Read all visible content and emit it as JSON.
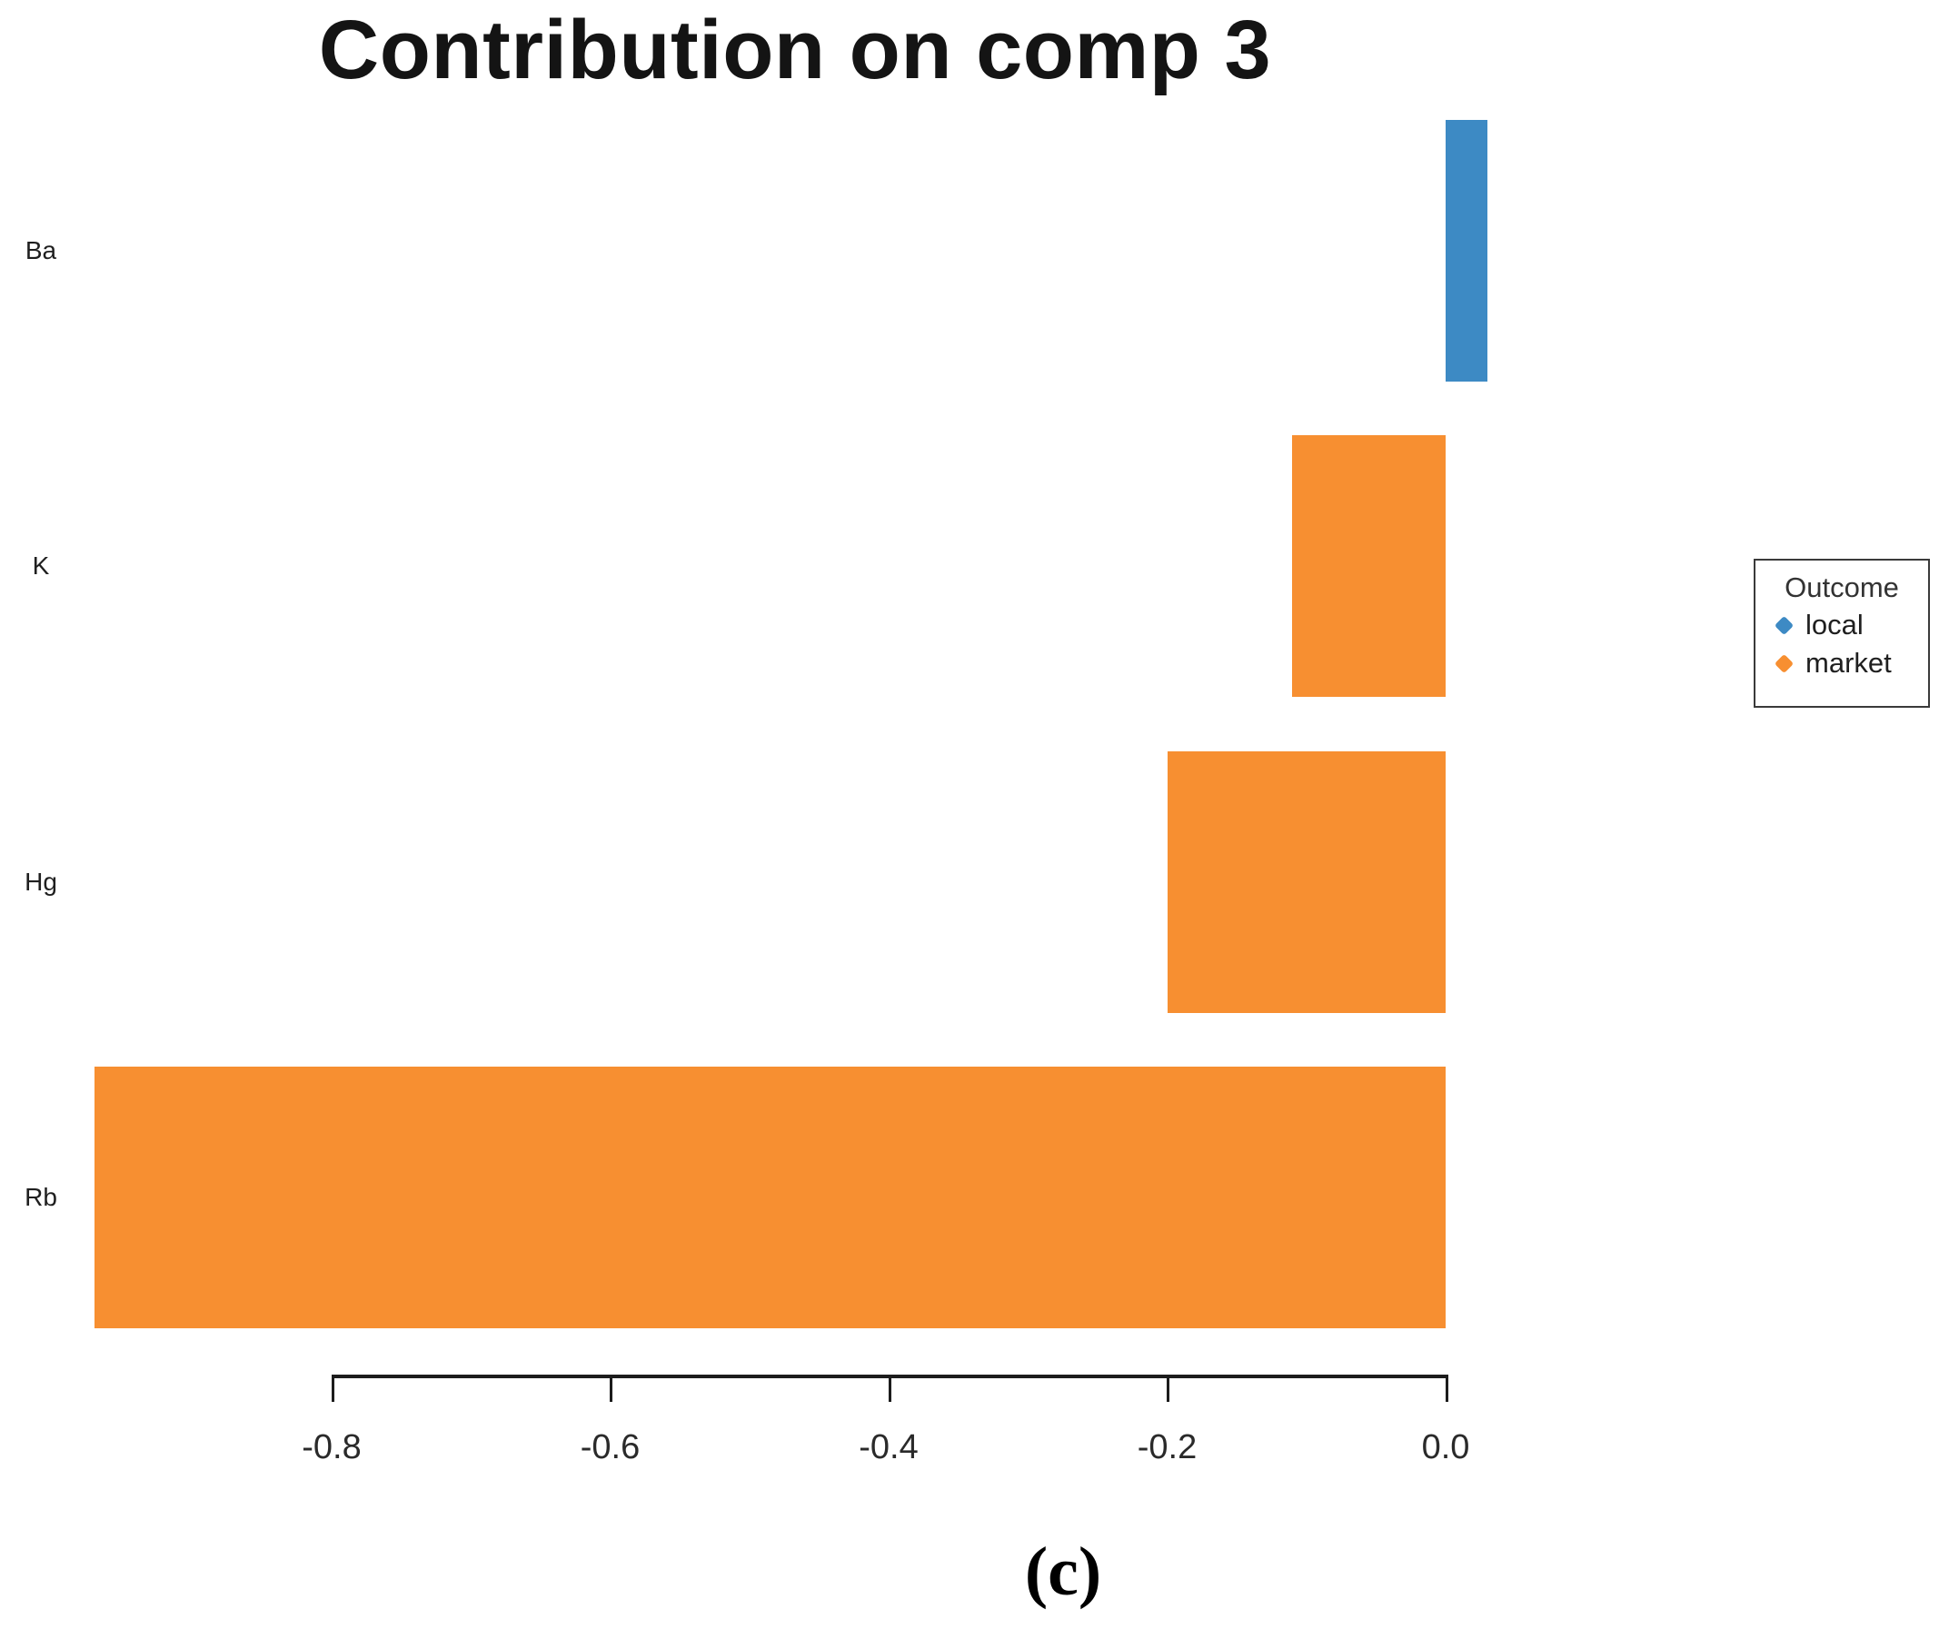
{
  "page": {
    "background": "#ffffff",
    "caption": "(c)"
  },
  "chart_data": {
    "type": "bar",
    "orientation": "horizontal",
    "title": "Contribution on comp 3",
    "xlabel": "",
    "ylabel": "",
    "grid": false,
    "categories": [
      "Ba",
      "K",
      "Hg",
      "Rb"
    ],
    "values": [
      0.03,
      -0.11,
      -0.2,
      -0.97
    ],
    "series_by_category": [
      "local",
      "market",
      "market",
      "market"
    ],
    "axis_range": [
      -0.8,
      0.0
    ],
    "x_ticks": [
      {
        "value": -0.8,
        "label": "-0.8"
      },
      {
        "value": -0.6,
        "label": "-0.6"
      },
      {
        "value": -0.4,
        "label": "-0.4"
      },
      {
        "value": -0.2,
        "label": "-0.2"
      },
      {
        "value": 0.0,
        "label": "0.0"
      }
    ],
    "colors": {
      "local": "#3d8ac4",
      "market": "#f78f31"
    },
    "legend": {
      "title": "Outcome",
      "position": "right",
      "entries": [
        {
          "label": "local",
          "series": "local"
        },
        {
          "label": "market",
          "series": "market"
        }
      ]
    }
  }
}
